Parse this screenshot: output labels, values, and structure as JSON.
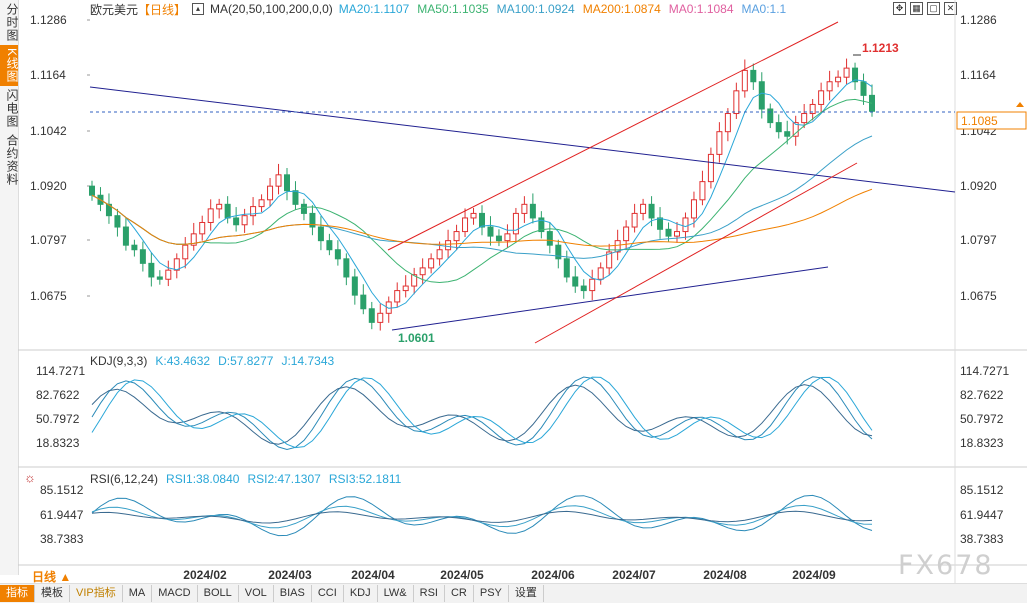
{
  "sidebar": {
    "tabs": [
      {
        "label": "分时图",
        "active": false
      },
      {
        "label": "K线图",
        "active": true
      },
      {
        "label": "闪电图",
        "active": false
      },
      {
        "label": "合约资料",
        "active": false
      }
    ]
  },
  "header": {
    "title": "欧元美元",
    "period_tag": "【日线】",
    "ma_spec": "MA(20,50,100,200,0,0)",
    "ma_values": [
      {
        "text": "MA20:1.1107",
        "color": "#2aa7d8"
      },
      {
        "text": "MA50:1.1035",
        "color": "#3cb371"
      },
      {
        "text": "MA100:1.0924",
        "color": "#3aa0c8"
      },
      {
        "text": "MA200:1.0874",
        "color": "#f08000"
      },
      {
        "text": "MA0:1.1084",
        "color": "#e060a0"
      },
      {
        "text": "MA0:1.1",
        "color": "#5aa0e0"
      }
    ]
  },
  "window_icons": [
    "move-icon",
    "grid-icon",
    "maximize-icon",
    "close-icon"
  ],
  "price_axis": {
    "ticks": [
      "1.1286",
      "1.1164",
      "1.1042",
      "1.0920",
      "1.0797",
      "1.0675"
    ],
    "current": "1.1085",
    "high_label": "1.1213",
    "low_label": "1.0601"
  },
  "kdj": {
    "title": "KDJ(9,3,3)",
    "k": "K:43.4632",
    "d": "D:57.8277",
    "j": "J:14.7343",
    "ticks": [
      "114.7271",
      "82.7622",
      "50.7972",
      "18.8323"
    ]
  },
  "rsi": {
    "title": "RSI(6,12,24)",
    "r1": "RSI1:38.0840",
    "r2": "RSI2:47.1307",
    "r3": "RSI3:52.1811",
    "ticks": [
      "85.1512",
      "61.9447",
      "38.7383"
    ]
  },
  "x_axis": {
    "labels": [
      "2024/02",
      "2024/03",
      "2024/04",
      "2024/05",
      "2024/06",
      "2024/07",
      "2024/08",
      "2024/09"
    ]
  },
  "period_button": "日线 ▲",
  "bottom_bar": {
    "buttons": [
      "指标",
      "模板",
      "VIP指标",
      "MA",
      "MACD",
      "BOLL",
      "VOL",
      "BIAS",
      "CCI",
      "KDJ",
      "LW&",
      "RSI",
      "CR",
      "PSY",
      "设置"
    ]
  },
  "watermark": "FX678",
  "colors": {
    "up": "#e03030",
    "down": "#2aa06a",
    "accent": "#f08000",
    "trend_red": "#e02020",
    "trend_blue": "#202090"
  },
  "chart_data": {
    "type": "line",
    "price_range": [
      1.0601,
      1.1286
    ],
    "x_period": [
      "2024-01-15",
      "2024-09-27"
    ],
    "close_series": [
      1.09,
      1.088,
      1.0855,
      1.083,
      1.079,
      1.078,
      1.075,
      1.072,
      1.0715,
      1.0735,
      1.076,
      1.079,
      1.0815,
      1.084,
      1.087,
      1.088,
      1.085,
      1.0835,
      1.0855,
      1.0875,
      1.089,
      1.092,
      1.0945,
      1.091,
      1.088,
      1.086,
      1.083,
      1.08,
      1.078,
      1.076,
      1.072,
      1.068,
      1.065,
      1.062,
      1.064,
      1.0665,
      1.069,
      1.07,
      1.0725,
      1.074,
      1.076,
      1.078,
      1.08,
      1.082,
      1.085,
      1.086,
      1.083,
      1.081,
      1.08,
      1.0815,
      1.086,
      1.088,
      1.085,
      1.082,
      1.079,
      1.076,
      1.072,
      1.07,
      1.069,
      1.0715,
      1.074,
      1.0775,
      1.08,
      1.083,
      1.086,
      1.088,
      1.085,
      1.0825,
      1.081,
      1.082,
      1.085,
      1.089,
      1.093,
      1.099,
      1.104,
      1.108,
      1.113,
      1.1175,
      1.115,
      1.109,
      1.106,
      1.104,
      1.103,
      1.106,
      1.108,
      1.11,
      1.113,
      1.115,
      1.116,
      1.118,
      1.115,
      1.112,
      1.1085
    ]
  }
}
